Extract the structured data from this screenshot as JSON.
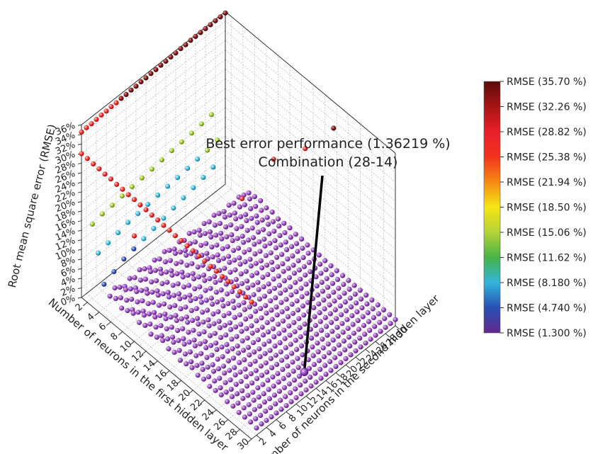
{
  "chart_data": {
    "type": "scatter3d",
    "x_axis": {
      "label": "Number of neurons in the first hidden layer",
      "range": [
        1,
        30
      ],
      "ticks": [
        2,
        4,
        6,
        8,
        10,
        12,
        14,
        16,
        18,
        20,
        22,
        24,
        26,
        28,
        30
      ]
    },
    "y_axis": {
      "label": "Number of neurons in the second hidden layer",
      "range": [
        1,
        30
      ],
      "ticks": [
        2,
        4,
        6,
        8,
        10,
        12,
        14,
        16,
        18,
        20,
        22,
        24,
        26,
        28,
        30
      ]
    },
    "z_axis": {
      "label": "Root mean square error (RMSE)",
      "range": [
        0,
        36
      ],
      "ticks": [
        "0%",
        "2%",
        "4%",
        "6%",
        "8%",
        "10%",
        "12%",
        "14%",
        "16%",
        "18%",
        "20%",
        "22%",
        "24%",
        "26%",
        "28%",
        "30%",
        "32%",
        "34%",
        "36%"
      ]
    },
    "grid": true,
    "color_scale": {
      "min": 1.3,
      "max": 35.7,
      "placement": "right",
      "entries": [
        {
          "label": "RMSE (35.70 %)",
          "color": "#5c0c0c"
        },
        {
          "label": "RMSE (32.26 %)",
          "color": "#a81414"
        },
        {
          "label": "RMSE (28.82 %)",
          "color": "#e8202a"
        },
        {
          "label": "RMSE (25.38 %)",
          "color": "#f2331e"
        },
        {
          "label": "RMSE (21.94 %)",
          "color": "#f58a14"
        },
        {
          "label": "RMSE (18.50 %)",
          "color": "#f5e614"
        },
        {
          "label": "RMSE (15.06 %)",
          "color": "#b4d238"
        },
        {
          "label": "RMSE (11.62 %)",
          "color": "#46b446"
        },
        {
          "label": "RMSE (8.180 %)",
          "color": "#32b4dc"
        },
        {
          "label": "RMSE (4.740 %)",
          "color": "#2850b4"
        },
        {
          "label": "RMSE (1.300 %)",
          "color": "#64288c"
        }
      ]
    },
    "best_point": {
      "x": 28,
      "y": 14,
      "z": 1.36219
    },
    "annotation": {
      "line1": "Best error performance (1.36219 %)",
      "line2": "Combination (28-14)"
    },
    "series": [
      {
        "description": "first hidden layer = 1 (all second-layer sizes)",
        "x": [
          1,
          1,
          1,
          1,
          1,
          1,
          1,
          1,
          1,
          1,
          1,
          1,
          1,
          1,
          1,
          1,
          1,
          1,
          1,
          1,
          1,
          1,
          1,
          1,
          1,
          1,
          1,
          1,
          1,
          1
        ],
        "y": [
          1,
          2,
          3,
          4,
          5,
          6,
          7,
          8,
          9,
          10,
          11,
          12,
          13,
          14,
          15,
          16,
          17,
          18,
          19,
          20,
          21,
          22,
          23,
          24,
          25,
          26,
          27,
          28,
          29,
          30
        ],
        "z": [
          34.5,
          34.6,
          34.6,
          34.7,
          34.8,
          34.8,
          34.9,
          34.9,
          35.0,
          35.0,
          35.1,
          35.1,
          35.2,
          35.2,
          35.3,
          35.3,
          35.4,
          35.4,
          35.5,
          35.5,
          35.6,
          35.6,
          35.7,
          35.7,
          35.7,
          35.7,
          35.7,
          35.7,
          35.7,
          35.7
        ]
      },
      {
        "description": "second hidden layer = 1 (all first-layer sizes)",
        "x": [
          1,
          2,
          3,
          4,
          5,
          6,
          7,
          8,
          9,
          10,
          11,
          12,
          13,
          14,
          15,
          16,
          17,
          18,
          19,
          20,
          21,
          22,
          23,
          24,
          25,
          26,
          27,
          28,
          29,
          30
        ],
        "y": [
          1,
          1,
          1,
          1,
          1,
          1,
          1,
          1,
          1,
          1,
          1,
          1,
          1,
          1,
          1,
          1,
          1,
          1,
          1,
          1,
          1,
          1,
          1,
          1,
          1,
          1,
          1,
          1,
          1,
          1
        ],
        "z": [
          30.0,
          30.0,
          29.9,
          29.9,
          29.8,
          29.8,
          29.7,
          29.7,
          29.6,
          29.6,
          29.5,
          29.5,
          29.4,
          29.4,
          29.3,
          29.3,
          29.2,
          29.2,
          29.1,
          29.1,
          29.0,
          29.0,
          28.9,
          28.9,
          28.8,
          28.8,
          28.7,
          28.7,
          28.6,
          28.6
        ]
      },
      {
        "description": "first hidden layer = 2",
        "x": [
          2,
          2,
          2,
          2,
          2,
          2,
          2,
          2,
          2,
          2,
          2,
          2,
          2
        ],
        "y": [
          2,
          4,
          6,
          8,
          10,
          12,
          14,
          16,
          18,
          20,
          22,
          24,
          26
        ],
        "z": [
          15.5,
          16.0,
          16.2,
          16.5,
          16.8,
          17.0,
          17.2,
          17.5,
          17.8,
          18.0,
          18.2,
          18.5,
          18.8
        ]
      },
      {
        "description": "first hidden layer = 3",
        "x": [
          3,
          3,
          3,
          3,
          3,
          3,
          3,
          3,
          3,
          3,
          3,
          3,
          3
        ],
        "y": [
          2,
          4,
          6,
          8,
          10,
          12,
          14,
          16,
          18,
          20,
          22,
          24,
          26
        ],
        "z": [
          10.5,
          11.0,
          11.5,
          12.0,
          12.2,
          12.5,
          12.8,
          13.0,
          13.2,
          13.5,
          13.8,
          14.0,
          14.5
        ]
      },
      {
        "description": "first hidden layer = 4",
        "x": [
          4,
          4,
          4,
          4,
          4,
          4,
          4,
          4,
          4,
          4,
          4,
          4
        ],
        "y": [
          2,
          4,
          6,
          8,
          10,
          12,
          14,
          16,
          18,
          20,
          22,
          24
        ],
        "z": [
          5.0,
          6.0,
          7.0,
          7.5,
          8.0,
          8.5,
          9.0,
          9.5,
          10.0,
          10.5,
          11.0,
          11.5
        ]
      },
      {
        "description": "isolated outliers",
        "x": [
          10,
          14,
          16,
          18,
          22
        ],
        "y": [
          1,
          18,
          22,
          26,
          27
        ],
        "z": [
          22.0,
          20.0,
          27.0,
          28.0,
          35.5
        ]
      }
    ],
    "surface": {
      "description": "remaining combinations (first layer 5-30, second layer 2-30)",
      "z_range": [
        1.3,
        4.5
      ]
    }
  }
}
